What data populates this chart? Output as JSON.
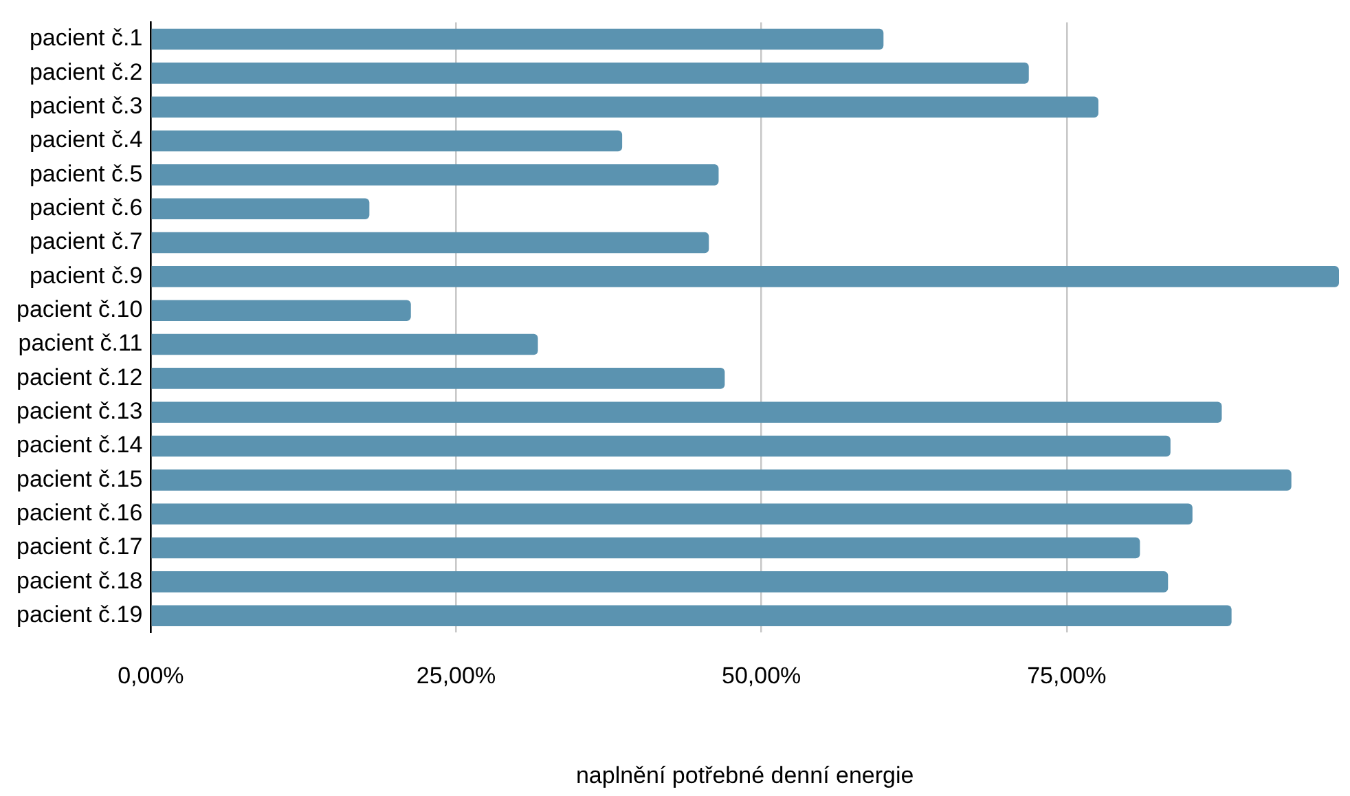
{
  "chart_data": {
    "type": "bar",
    "orientation": "horizontal",
    "xlabel": "naplnění potřebné denní energie",
    "categories": [
      "pacient č.1",
      "pacient č.2",
      "pacient č.3",
      "pacient č.4",
      "pacient č.5",
      "pacient č.6",
      "pacient č.7",
      "pacient č.9",
      "pacient č.10",
      "pacient č.11",
      "pacient č.12",
      "pacient č.13",
      "pacient č.14",
      "pacient č.15",
      "pacient č.16",
      "pacient č.17",
      "pacient č.18",
      "pacient č.19"
    ],
    "values": [
      60.0,
      71.9,
      77.6,
      38.6,
      46.5,
      17.9,
      45.7,
      97.3,
      21.3,
      31.7,
      47.0,
      87.7,
      83.5,
      93.4,
      85.3,
      81.0,
      83.3,
      88.5
    ],
    "color": "#5b93b0",
    "xlim": [
      0,
      97.3
    ],
    "xticks": [
      {
        "value": 0,
        "label": "0,00%"
      },
      {
        "value": 25,
        "label": "25,00%"
      },
      {
        "value": 50,
        "label": "50,00%"
      },
      {
        "value": 75,
        "label": "75,00%"
      }
    ],
    "grid": "x",
    "legend": false
  }
}
